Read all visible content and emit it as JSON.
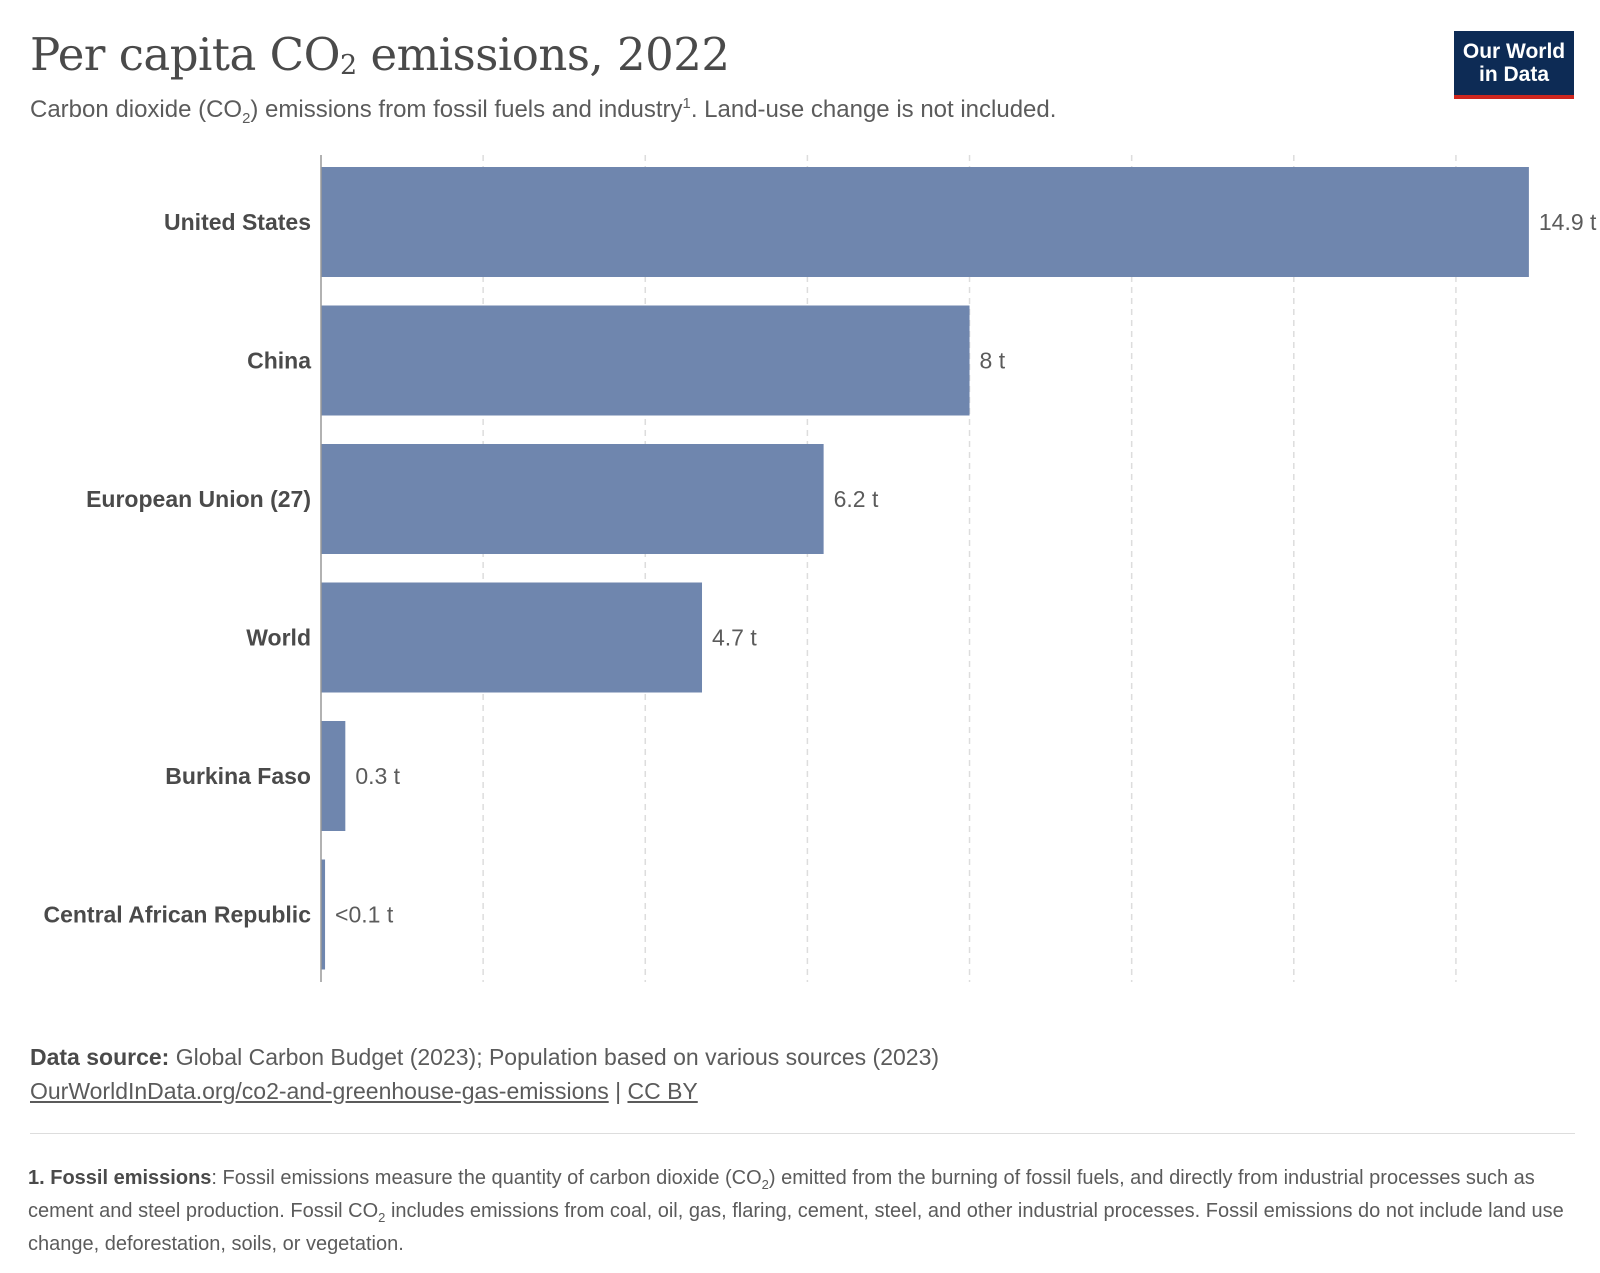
{
  "header": {
    "title_pre": "Per capita CO",
    "title_sub": "2",
    "title_post": " emissions, 2022",
    "subtitle_pre": "Carbon dioxide (CO",
    "subtitle_sub": "2",
    "subtitle_mid": ") emissions from fossil fuels and industry",
    "subtitle_sup": "1",
    "subtitle_post": ". Land-use change is not included."
  },
  "logo": {
    "line1": "Our World",
    "line2": "in Data"
  },
  "colors": {
    "bar": "#6f86ae",
    "grid": "#dddddd",
    "axis": "#999999"
  },
  "chart_data": {
    "type": "bar",
    "orientation": "horizontal",
    "title": "Per capita CO2 emissions, 2022",
    "subtitle": "Carbon dioxide (CO2) emissions from fossil fuels and industry. Land-use change is not included.",
    "categories": [
      "United States",
      "China",
      "European Union (27)",
      "World",
      "Burkina Faso",
      "Central African Republic"
    ],
    "values": [
      14.9,
      8.0,
      6.2,
      4.7,
      0.3,
      0.05
    ],
    "value_labels": [
      "14.9 t",
      "8 t",
      "6.2 t",
      "4.7 t",
      "0.3 t",
      "<0.1 t"
    ],
    "unit": "t",
    "xlim": [
      0,
      15
    ],
    "grid_step": 2,
    "grid": true,
    "legend": "none"
  },
  "footer": {
    "source_label": "Data source:",
    "source_text": " Global Carbon Budget (2023); Population based on various sources (2023)",
    "link_text": "OurWorldInData.org/co2-and-greenhouse-gas-emissions",
    "separator": " | ",
    "license": "CC BY"
  },
  "note": {
    "label": "1. Fossil emissions",
    "text_1": ": Fossil emissions measure the quantity of carbon dioxide (CO",
    "sub_1": "2",
    "text_2": ") emitted from the burning of fossil fuels, and directly from industrial processes such as cement and steel production. Fossil CO",
    "sub_2": "2",
    "text_3": " includes emissions from coal, oil, gas, flaring, cement, steel, and other industrial processes. Fossil emissions do not include land use change, deforestation, soils, or vegetation."
  }
}
